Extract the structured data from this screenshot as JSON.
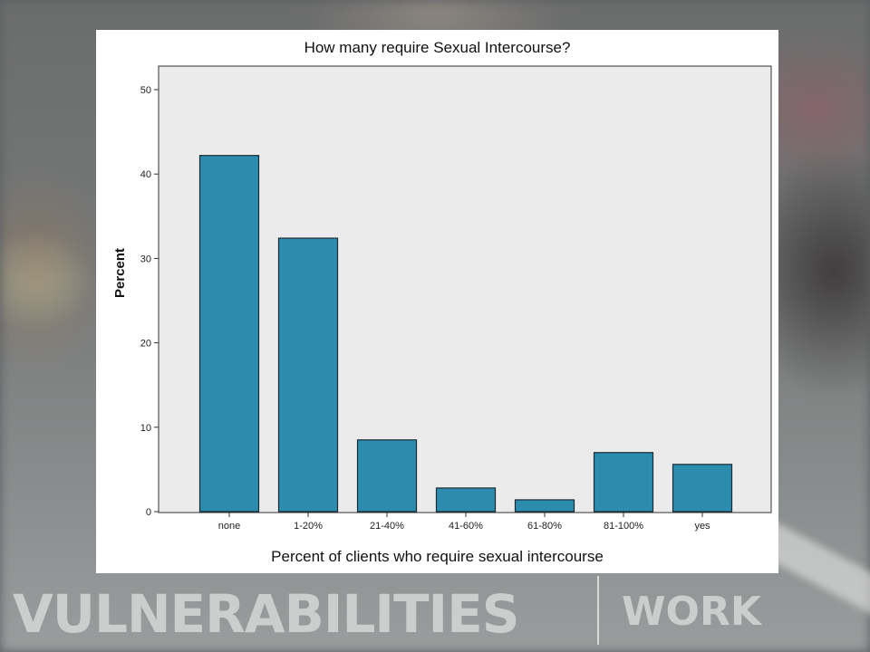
{
  "footer": {
    "left_text": "VULNERABILITIES",
    "right_text": "WORK"
  },
  "colors": {
    "bar_fill": "#2b8cae",
    "bar_stroke": "#1c2b33",
    "plot_bg": "#ebebeb"
  },
  "chart_data": {
    "type": "bar",
    "title": "How many require Sexual Intercourse?",
    "xlabel": "Percent of clients  who require sexual intercourse",
    "ylabel": "Percent",
    "categories": [
      "none",
      "1-20%",
      "21-40%",
      "41-60%",
      "61-80%",
      "81-100%",
      "yes"
    ],
    "values": [
      42.2,
      32.4,
      8.5,
      2.8,
      1.4,
      7.0,
      5.6
    ],
    "ylim": [
      0,
      50
    ],
    "yticks": [
      0,
      10,
      20,
      30,
      40,
      50
    ],
    "grid": false,
    "legend": "none"
  }
}
